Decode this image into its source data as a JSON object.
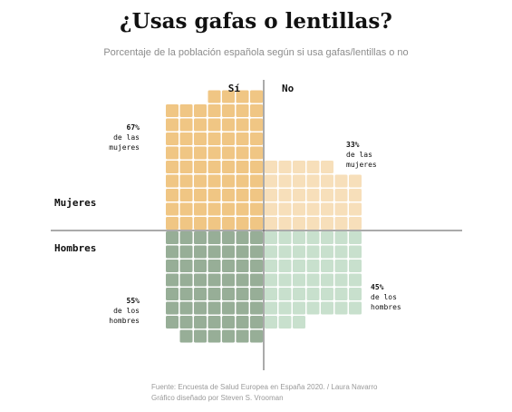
{
  "title": "¿Usas gafas o lentillas?",
  "subtitle": "Porcentaje de la población española según si usa gafas/lentillas o no",
  "source_line1": "Fuente: Encuesta de Salud Europea en España 2020. / Laura Navarro",
  "source_line2": "Gráfico diseñado por Steven S. Vrooman",
  "colors": {
    "women_yes": "#f0c684",
    "women_no": "#f7dfba",
    "men_yes": "#97ae97",
    "men_no": "#c8e0cd",
    "axis": "#555555",
    "text": "#111111"
  },
  "chart_data": {
    "type": "waffle",
    "title": "¿Usas gafas o lentillas?",
    "subtitle": "Porcentaje de la población española según si usa gafas/lentillas o no",
    "columns": [
      "Sí",
      "No"
    ],
    "rows": [
      "Mujeres",
      "Hombres"
    ],
    "series": [
      {
        "name": "Mujeres",
        "answer": "Sí",
        "value": 67,
        "pct_label": "67%",
        "label_lines": [
          "de las",
          "mujeres"
        ]
      },
      {
        "name": "Mujeres",
        "answer": "No",
        "value": 33,
        "pct_label": "33%",
        "label_lines": [
          "de las",
          "mujeres"
        ]
      },
      {
        "name": "Hombres",
        "answer": "Sí",
        "value": 55,
        "pct_label": "55%",
        "label_lines": [
          "de los",
          "hombres"
        ]
      },
      {
        "name": "Hombres",
        "answer": "No",
        "value": 45,
        "pct_label": "45%",
        "label_lines": [
          "de los",
          "hombres"
        ]
      }
    ],
    "unit": "%",
    "legend": "none",
    "grid": false
  }
}
